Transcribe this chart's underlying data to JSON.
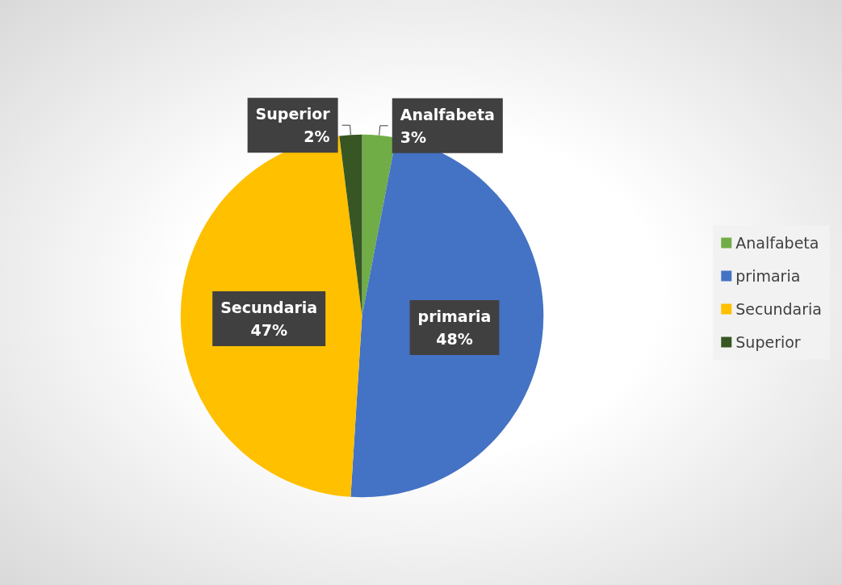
{
  "chart_data": {
    "type": "pie",
    "categories": [
      "Analfabeta",
      "primaria",
      "Secundaria",
      "Superior"
    ],
    "values": [
      3,
      48,
      47,
      2
    ],
    "colors": [
      "#70ad47",
      "#4472c4",
      "#ffc000",
      "#375623"
    ],
    "value_labels": [
      "3%",
      "48%",
      "47%",
      "2%"
    ],
    "legend": "right"
  }
}
